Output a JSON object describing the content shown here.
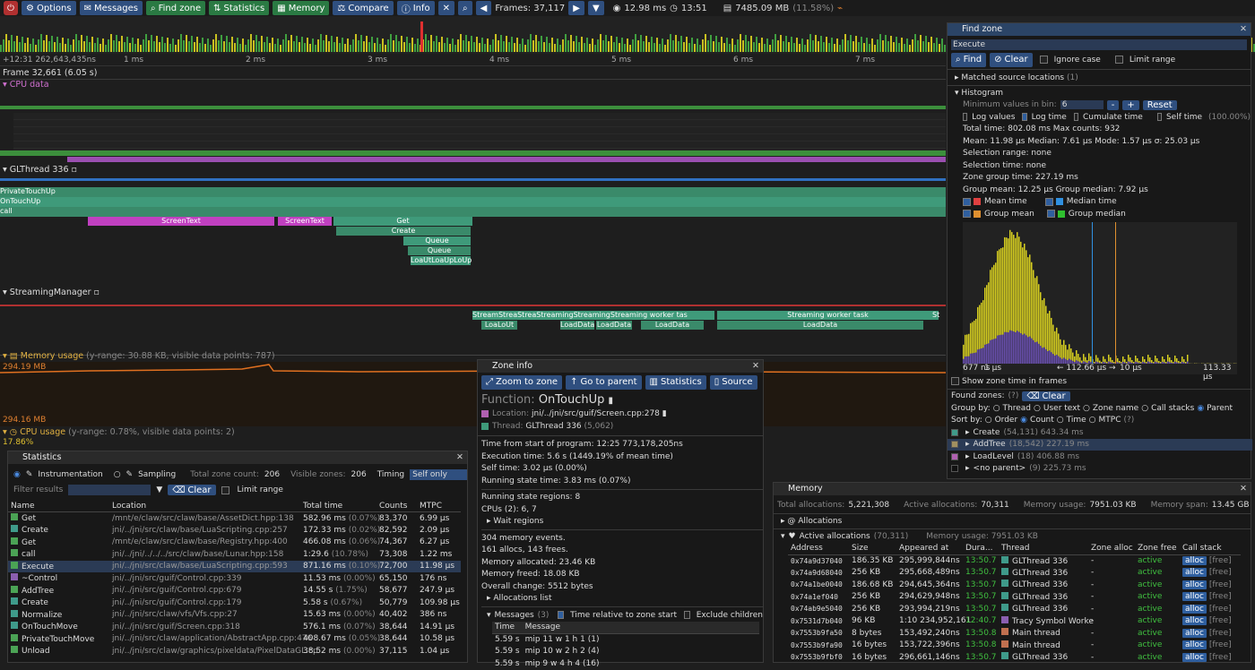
{
  "toolbar": {
    "options": "Options",
    "messages": "Messages",
    "find_zone": "Find zone",
    "statistics": "Statistics",
    "memory": "Memory",
    "compare": "Compare",
    "info": "Info",
    "frames": "Frames: 37,117",
    "frame_time": "12.98 ms",
    "time": "13:51",
    "mem": "7485.09 MB",
    "mem_pct": "(11.58%)"
  },
  "ruler": {
    "offset": "+12:31 262,643,435ns",
    "ticks": [
      "1 ms",
      "2 ms",
      "3 ms",
      "4 ms",
      "5 ms",
      "6 ms",
      "7 ms"
    ]
  },
  "timeline": {
    "frame_label": "Frame 32,661 (6.05 s)",
    "cpu_data": "CPU data",
    "glthread": "GLThread 336",
    "streaming": "StreamingManager",
    "mem_usage": "Memory usage",
    "mem_note": "(y-range: 30.88 KB, visible data points: 787)",
    "mem_max": "294.19 MB",
    "mem_min": "294.16 MB",
    "cpu_usage": "CPU usage",
    "cpu_note": "(y-range: 0.78%, visible data points: 2)",
    "cpu_val": "17.86%",
    "gl_zones": [
      "PrivateTouchUp",
      "OnTouchUp",
      "call",
      "ScreenText",
      "ScreenText",
      "Get",
      "Create",
      "Queue",
      "Queue",
      "LoaUtLoaUpLoUp"
    ],
    "sm_zones": [
      "StreamStreaStreaStreamingStreamingStreaming worker tas",
      "Streaming worker task",
      "LoaLoUt",
      "LoadData",
      "LoadData",
      "LoadData",
      "LoadData",
      "St"
    ]
  },
  "statistics": {
    "title": "Statistics",
    "instrumentation": "Instrumentation",
    "sampling": "Sampling",
    "total_label": "Total zone count:",
    "total": "206",
    "visible_label": "Visible zones:",
    "visible": "206",
    "timing_label": "Timing",
    "timing_value": "Self only",
    "filter_label": "Filter results",
    "clear": "Clear",
    "limit": "Limit range",
    "headers": [
      "Name",
      "Location",
      "Total time",
      "Counts",
      "MTPC"
    ],
    "rows": [
      {
        "color": "#4ba355",
        "name": "Get",
        "loc": "/mnt/e/claw/src/claw/base/AssetDict.hpp:138",
        "time": "582.96 ms",
        "pct": "(0.07%)",
        "count": "83,370",
        "mtpc": "6.99 µs"
      },
      {
        "color": "#3f9a8a",
        "name": "Create",
        "loc": "jni/../jni/src/claw/base/LuaScripting.cpp:257",
        "time": "172.33 ms",
        "pct": "(0.02%)",
        "count": "82,592",
        "mtpc": "2.09 µs"
      },
      {
        "color": "#4ba355",
        "name": "Get",
        "loc": "/mnt/e/claw/src/claw/base/Registry.hpp:400",
        "time": "466.08 ms",
        "pct": "(0.06%)",
        "count": "74,367",
        "mtpc": "6.27 µs"
      },
      {
        "color": "#4ba355",
        "name": "call",
        "loc": "jni/../jni/../../../src/claw/base/Lunar.hpp:158",
        "time": "1:29.6",
        "pct": "(10.78%)",
        "count": "73,308",
        "mtpc": "1.22 ms"
      },
      {
        "color": "#4ba355",
        "name": "Execute",
        "loc": "jni/../jni/src/claw/base/LuaScripting.cpp:593",
        "time": "871.16 ms",
        "pct": "(0.10%)",
        "count": "72,700",
        "mtpc": "11.98 µs"
      },
      {
        "color": "#8a5fb0",
        "name": "~Control",
        "loc": "jni/../jni/src/guif/Control.cpp:339",
        "time": "11.53 ms",
        "pct": "(0.00%)",
        "count": "65,150",
        "mtpc": "176 ns"
      },
      {
        "color": "#4ba355",
        "name": "AddTree",
        "loc": "jni/../jni/src/guif/Control.cpp:679",
        "time": "14.55 s",
        "pct": "(1.75%)",
        "count": "58,677",
        "mtpc": "247.9 µs"
      },
      {
        "color": "#3f9a8a",
        "name": "Create",
        "loc": "jni/../jni/src/guif/Control.cpp:179",
        "time": "5.58 s",
        "pct": "(0.67%)",
        "count": "50,779",
        "mtpc": "109.98 µs"
      },
      {
        "color": "#3f9a8a",
        "name": "Normalize",
        "loc": "jni/../jni/src/claw/vfs/Vfs.cpp:27",
        "time": "15.63 ms",
        "pct": "(0.00%)",
        "count": "40,402",
        "mtpc": "386 ns"
      },
      {
        "color": "#3f9a8a",
        "name": "OnTouchMove",
        "loc": "jni/../jni/src/guif/Screen.cpp:318",
        "time": "576.1 ms",
        "pct": "(0.07%)",
        "count": "38,644",
        "mtpc": "14.91 µs"
      },
      {
        "color": "#4ba355",
        "name": "PrivateTouchMove",
        "loc": "jni/../jni/src/claw/application/AbstractApp.cpp:476",
        "time": "408.67 ms",
        "pct": "(0.05%)",
        "count": "38,644",
        "mtpc": "10.58 µs"
      },
      {
        "color": "#4ba355",
        "name": "Unload",
        "loc": "jni/../jni/src/claw/graphics/pixeldata/PixelDataGL.cp",
        "time": "38.52 ms",
        "pct": "(0.00%)",
        "count": "37,115",
        "mtpc": "1.04 µs"
      }
    ]
  },
  "zoneinfo": {
    "title": "Zone info",
    "zoom": "Zoom to zone",
    "parent": "Go to parent",
    "stats": "Statistics",
    "source": "Source",
    "func_label": "Function:",
    "func": "OnTouchUp",
    "loc_label": "Location:",
    "loc": "jni/../jni/src/guif/Screen.cpp:278",
    "thread_label": "Thread:",
    "thread": "GLThread 336",
    "thread_id": "(5,062)",
    "lines": [
      "Time from start of program: 12:25 773,178,205ns",
      "Execution time: 5.6 s (1449.19% of mean time)",
      "Self time: 3.02 µs (0.00%)",
      "Running state time: 3.83 ms (0.07%)",
      "Running state regions: 8",
      "CPUs (2): 6, 7"
    ],
    "wait": "Wait regions",
    "mem_lines": [
      "304 memory events.",
      "161 allocs, 143 frees.",
      "Memory allocated: 23.46 KB",
      "Memory freed: 18.08 KB",
      "Overall change: 5512 bytes"
    ],
    "alloc_list": "Allocations list",
    "messages": "Messages",
    "msg_count": "(3)",
    "time_rel": "Time relative to zone start",
    "excl": "Exclude children",
    "msg_headers": [
      "Time",
      "Message"
    ],
    "msgs": [
      {
        "t": "5.59 s",
        "m": "mip 11 w 1 h 1 (1)"
      },
      {
        "t": "5.59 s",
        "m": "mip 10 w 2 h 2 (4)"
      },
      {
        "t": "5.59 s",
        "m": "mip 9 w 4 h 4 (16)"
      }
    ]
  },
  "findzone": {
    "title": "Find zone",
    "query": "Execute",
    "find": "Find",
    "clear": "Clear",
    "ignore": "Ignore case",
    "limit": "Limit range",
    "matched": "Matched source locations",
    "matched_n": "(1)",
    "histogram": "Histogram",
    "min_bin": "Minimum values in bin:",
    "min_bin_val": "6",
    "reset": "Reset",
    "log_values": "Log values",
    "log_time": "Log time",
    "cumulate": "Cumulate time",
    "self_time": "Self time",
    "self_pct": "(100.00%)",
    "stats": [
      "Total time:  802.08 ms    Max counts:  932",
      "Mean:  11.98 µs    Median:  7.61 µs    Mode:  1.57 µs    σ:  25.03 µs",
      "Selection range:  none",
      "Selection time:  none",
      "Zone group time:  227.19 ms",
      "Group mean:  12.25 µs    Group median:  7.92 µs"
    ],
    "legend": [
      {
        "c": "#e04040",
        "t": "Mean time"
      },
      {
        "c": "#3090e0",
        "t": "Median time"
      },
      {
        "c": "#e09030",
        "t": "Group mean"
      },
      {
        "c": "#30c030",
        "t": "Group median"
      }
    ],
    "axis": [
      "677 ns",
      "1 µs",
      "← 112.66 µs →",
      "10 µs",
      "113.33 µs"
    ],
    "show_frames": "Show zone time in frames",
    "found": "Found zones:",
    "group_by": "Group by:",
    "groups": [
      "Thread",
      "User text",
      "Zone name",
      "Call stacks",
      "Parent"
    ],
    "sort_by": "Sort by:",
    "sorts": [
      "Order",
      "Count",
      "Time",
      "MTPC"
    ],
    "results": [
      {
        "c": "#3f9a8a",
        "n": "Create",
        "v": "(54,131) 643.34 ms"
      },
      {
        "c": "#a09060",
        "n": "AddTree",
        "v": "(18,542) 227.19 ms"
      },
      {
        "c": "#b060b0",
        "n": "LoadLevel",
        "v": "(18) 406.88 ms"
      },
      {
        "c": "#111111",
        "n": "<no parent>",
        "v": "(9) 225.73 ms"
      }
    ]
  },
  "memory": {
    "title": "Memory",
    "total_alloc_label": "Total allocations:",
    "total_alloc": "5,221,308",
    "active_label": "Active allocations:",
    "active": "70,311",
    "usage_label": "Memory usage:",
    "usage": "7951.03 KB",
    "span_label": "Memory span:",
    "span": "13.45 GB",
    "allocations": "Allocations",
    "active_allocs": "Active allocations",
    "active_n": "(70,311)",
    "mem_usage2": "Memory usage:  7951.03 KB",
    "headers": [
      "Address",
      "Size",
      "Appeared at",
      "Dura...",
      "Thread",
      "Zone alloc",
      "Zone free",
      "Call stack"
    ],
    "rows": [
      {
        "a": "0x74a9d37040",
        "s": "186.35 KB",
        "t": "295,999,844ns",
        "d": "13:50.7",
        "th": "GLThread 336",
        "c": "#3f9a8a"
      },
      {
        "a": "0x74a9d68040",
        "s": "256 KB",
        "t": "295,668,489ns",
        "d": "13:50.7",
        "th": "GLThread 336",
        "c": "#3f9a8a"
      },
      {
        "a": "0x74a1be0040",
        "s": "186.68 KB",
        "t": "294,645,364ns",
        "d": "13:50.7",
        "th": "GLThread 336",
        "c": "#3f9a8a"
      },
      {
        "a": "0x74a1ef040",
        "s": "256 KB",
        "t": "294,629,948ns",
        "d": "13:50.7",
        "th": "GLThread 336",
        "c": "#3f9a8a"
      },
      {
        "a": "0x74ab9e5040",
        "s": "256 KB",
        "t": "293,994,219ns",
        "d": "13:50.7",
        "th": "GLThread 336",
        "c": "#3f9a8a"
      },
      {
        "a": "0x7531d7b040",
        "s": "96 KB",
        "t": "1:10 234,952,161",
        "d": "12:40.7",
        "th": "Tracy Symbol Worke",
        "c": "#8a5fb0"
      },
      {
        "a": "0x7553b9fa50",
        "s": "8 bytes",
        "t": "153,492,240ns",
        "d": "13:50.8",
        "th": "Main thread",
        "c": "#c07050"
      },
      {
        "a": "0x7553b9fa90",
        "s": "16 bytes",
        "t": "153,722,396ns",
        "d": "13:50.8",
        "th": "Main thread",
        "c": "#c07050"
      },
      {
        "a": "0x7553b9fbf0",
        "s": "16 bytes",
        "t": "296,661,146ns",
        "d": "13:50.7",
        "th": "GLThread 336",
        "c": "#3f9a8a"
      }
    ],
    "zone_alloc": "-",
    "zone_free": "active",
    "alloc_btn": "alloc",
    "free_btn": "[free]"
  }
}
